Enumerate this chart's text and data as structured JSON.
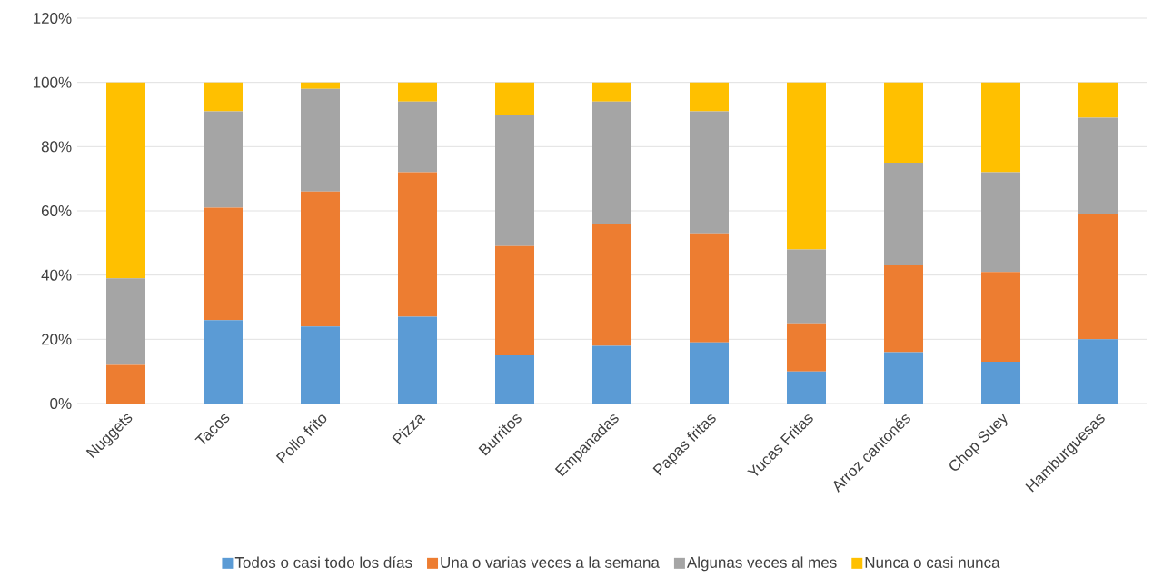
{
  "chart_data": {
    "type": "bar",
    "stacked": true,
    "grid": "y",
    "legend": "bottom",
    "categories": [
      "Nuggets",
      "Tacos",
      "Pollo frito",
      "Pizza",
      "Burritos",
      "Empanadas",
      "Papas fritas",
      "Yucas Fritas",
      "Arroz cantonés",
      "Chop Suey",
      "Hamburguesas"
    ],
    "ylim": [
      0,
      120
    ],
    "yticks": [
      {
        "value": 0,
        "label": "0%"
      },
      {
        "value": 20,
        "label": "20%"
      },
      {
        "value": 40,
        "label": "40%"
      },
      {
        "value": 60,
        "label": "60%"
      },
      {
        "value": 80,
        "label": "80%"
      },
      {
        "value": 100,
        "label": "100%"
      },
      {
        "value": 120,
        "label": "120%"
      }
    ],
    "series": [
      {
        "name": "Todos o casi todo los días",
        "color": "#5b9bd5",
        "values": [
          0,
          26,
          24,
          27,
          15,
          18,
          19,
          10,
          16,
          13,
          20
        ]
      },
      {
        "name": "Una o varias veces a la semana",
        "color": "#ed7d31",
        "values": [
          12,
          35,
          42,
          45,
          34,
          38,
          34,
          15,
          27,
          28,
          39
        ]
      },
      {
        "name": "Algunas veces al mes",
        "color": "#a5a5a5",
        "values": [
          27,
          30,
          32,
          22,
          41,
          38,
          38,
          23,
          32,
          31,
          30
        ]
      },
      {
        "name": "Nunca o casi nunca",
        "color": "#ffc000",
        "values": [
          61,
          9,
          2,
          6,
          10,
          6,
          9,
          52,
          25,
          28,
          11
        ]
      }
    ]
  }
}
